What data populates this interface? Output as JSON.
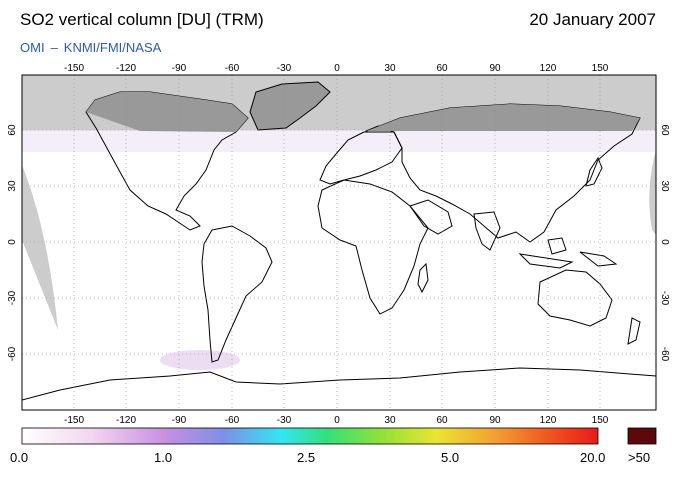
{
  "header": {
    "title": "SO2 vertical column [DU] (TRM)",
    "date": "20 January 2007",
    "credit_left": "OMI",
    "credit_dash": "–",
    "credit_right": "KNMI/FMI/NASA"
  },
  "map": {
    "lon_ticks": [
      "-150",
      "-120",
      "-90",
      "-60",
      "-30",
      "0",
      "30",
      "60",
      "90",
      "120",
      "150"
    ],
    "lat_ticks_left": [
      "60",
      "30",
      "0",
      "-30",
      "-60"
    ],
    "lat_ticks_right": [
      "60",
      "30",
      "0",
      "-30",
      "-60"
    ],
    "colors": {
      "ocean": "#ffffff",
      "no_data": "#cccccc",
      "no_data_dark": "#aaaaaa",
      "coast": "#000000",
      "grid": "#888888"
    }
  },
  "color_scale": {
    "labels": [
      "0.0",
      "1.0",
      "2.5",
      "5.0",
      "20.0"
    ],
    "overflow_label": ">50",
    "stops": [
      "#ffffff",
      "#f3d6f0",
      "#c78fe0",
      "#7f8fe6",
      "#33e6f2",
      "#33e07a",
      "#8ee03a",
      "#e9e533",
      "#f3a033",
      "#f05a20",
      "#e81a1a"
    ],
    "overflow_color": "#5a0a0a"
  }
}
